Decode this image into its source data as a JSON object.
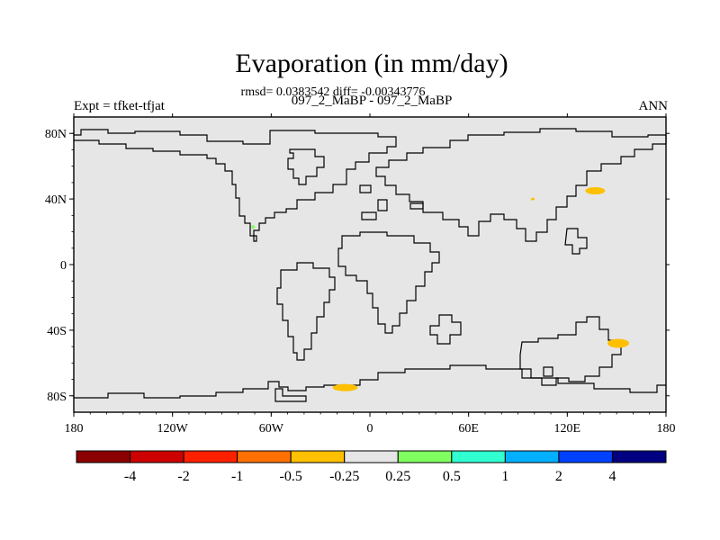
{
  "title": "Evaporation (in mm/day)",
  "stats": "rmsd= 0.0383542 diff= -0.00343776",
  "subtitle": "097_2_MaBP - 097_2_MaBP",
  "left_label": "Expt = tfket-tfjat",
  "right_label": "ANN",
  "map": {
    "projection": "cylindrical equidistant",
    "lon_range": [
      -180,
      180
    ],
    "lat_range": [
      -90,
      90
    ],
    "background_color": "#e6e6e6",
    "coastline_color": "#000000",
    "x_ticks": [
      {
        "lon": -180,
        "label": "180"
      },
      {
        "lon": -120,
        "label": "120W"
      },
      {
        "lon": -60,
        "label": "60W"
      },
      {
        "lon": 0,
        "label": "0"
      },
      {
        "lon": 60,
        "label": "60E"
      },
      {
        "lon": 120,
        "label": "120E"
      },
      {
        "lon": 180,
        "label": "180"
      }
    ],
    "y_ticks": [
      {
        "lat": 80,
        "label": "80N"
      },
      {
        "lat": 40,
        "label": "40N"
      },
      {
        "lat": 0,
        "label": "0"
      },
      {
        "lat": -40,
        "label": "40S"
      },
      {
        "lat": -80,
        "label": "80S"
      }
    ],
    "anomaly_patches": [
      {
        "lon": 137,
        "lat": 45,
        "color": "#ffc000",
        "category": "-0.5 to -0.25"
      },
      {
        "lon": 99,
        "lat": 40,
        "color": "#ffc000",
        "category": "-0.5 to -0.25"
      },
      {
        "lon": -71,
        "lat": 23,
        "color": "#80ff60",
        "category": "0.25 to 0.5"
      },
      {
        "lon": 151,
        "lat": -48,
        "color": "#ffc000",
        "category": "-0.5 to -0.25"
      },
      {
        "lon": -15,
        "lat": -75,
        "color": "#ffc000",
        "category": "-0.5 to -0.25"
      }
    ]
  },
  "colorbar": {
    "colors": [
      "#8b0000",
      "#cc0000",
      "#ff2000",
      "#ff7000",
      "#ffc000",
      "#e6e6e6",
      "#80ff60",
      "#30ffd0",
      "#00b0ff",
      "#0040ff",
      "#000080"
    ],
    "labels": [
      "-4",
      "-2",
      "-1",
      "-0.5",
      "-0.25",
      "0.25",
      "0.5",
      "1",
      "2",
      "4"
    ]
  }
}
